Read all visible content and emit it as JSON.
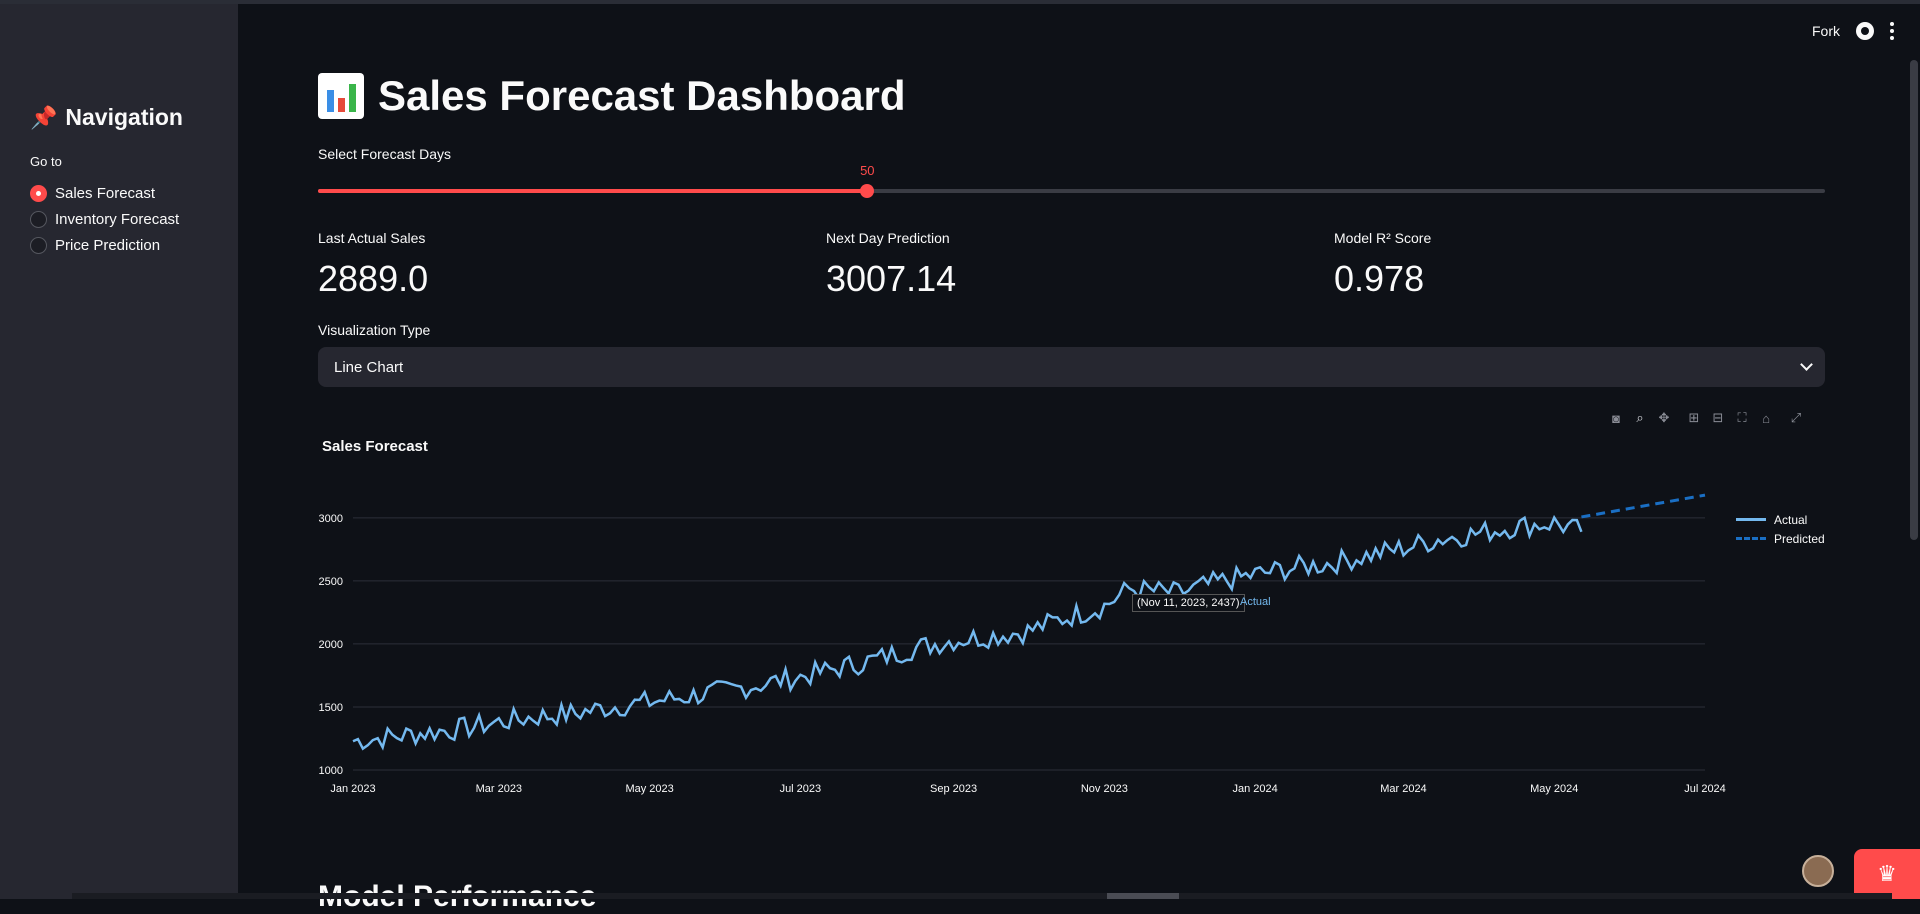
{
  "sidebar": {
    "title": "Navigation",
    "goto_label": "Go to",
    "items": [
      {
        "label": "Sales Forecast",
        "selected": true
      },
      {
        "label": "Inventory Forecast",
        "selected": false
      },
      {
        "label": "Price Prediction",
        "selected": false
      }
    ]
  },
  "header": {
    "fork_label": "Fork"
  },
  "main": {
    "title": "Sales Forecast Dashboard",
    "slider": {
      "label": "Select Forecast Days",
      "value": "50",
      "fraction": 0.3645
    },
    "metrics": [
      {
        "label": "Last Actual Sales",
        "value": "2889.0"
      },
      {
        "label": "Next Day Prediction",
        "value": "3007.14"
      },
      {
        "label": "Model R² Score",
        "value": "0.978"
      }
    ],
    "viz": {
      "label": "Visualization Type",
      "selected": "Line Chart"
    },
    "tooltip": {
      "text": "(Nov 11, 2023, 2437)",
      "series": "Actual"
    },
    "next_section": "Model Performance"
  },
  "colors": {
    "accent": "#ff4b4b",
    "actual": "#74b9ef",
    "predicted": "#1a6fc4",
    "bg": "#0e1117",
    "sidebar": "#262730"
  },
  "chart_data": {
    "type": "line",
    "title": "Sales Forecast",
    "xlabel": "",
    "ylabel": "",
    "x_range": [
      "2023-01-01",
      "2024-07-01"
    ],
    "ylim": [
      1000,
      3300
    ],
    "x_ticks": [
      "Jan 2023",
      "Mar 2023",
      "May 2023",
      "Jul 2023",
      "Sep 2023",
      "Nov 2023",
      "Jan 2024",
      "Mar 2024",
      "May 2024",
      "Jul 2024"
    ],
    "y_ticks": [
      1000,
      1500,
      2000,
      2500,
      3000
    ],
    "grid": true,
    "legend_position": "top-right",
    "series": [
      {
        "name": "Actual",
        "style": "solid",
        "x": [
          "2023-01-01",
          "2023-01-15",
          "2023-02-01",
          "2023-02-15",
          "2023-03-01",
          "2023-03-15",
          "2023-04-01",
          "2023-04-15",
          "2023-05-01",
          "2023-05-15",
          "2023-06-01",
          "2023-06-15",
          "2023-07-01",
          "2023-07-15",
          "2023-08-01",
          "2023-08-15",
          "2023-09-01",
          "2023-09-15",
          "2023-10-01",
          "2023-10-15",
          "2023-11-01",
          "2023-11-11",
          "2023-12-01",
          "2023-12-15",
          "2024-01-01",
          "2024-01-15",
          "2024-02-01",
          "2024-02-15",
          "2024-03-01",
          "2024-03-15",
          "2024-04-01",
          "2024-04-15",
          "2024-05-01",
          "2024-05-12"
        ],
        "y": [
          1230,
          1260,
          1300,
          1330,
          1380,
          1420,
          1450,
          1500,
          1540,
          1580,
          1630,
          1680,
          1740,
          1800,
          1880,
          1960,
          2030,
          2060,
          2100,
          2200,
          2300,
          2437,
          2400,
          2480,
          2550,
          2600,
          2640,
          2700,
          2760,
          2830,
          2880,
          2930,
          2960,
          2889
        ]
      },
      {
        "name": "Predicted",
        "style": "dashed",
        "x": [
          "2024-05-12",
          "2024-07-01"
        ],
        "y": [
          3007,
          3180
        ]
      }
    ]
  }
}
